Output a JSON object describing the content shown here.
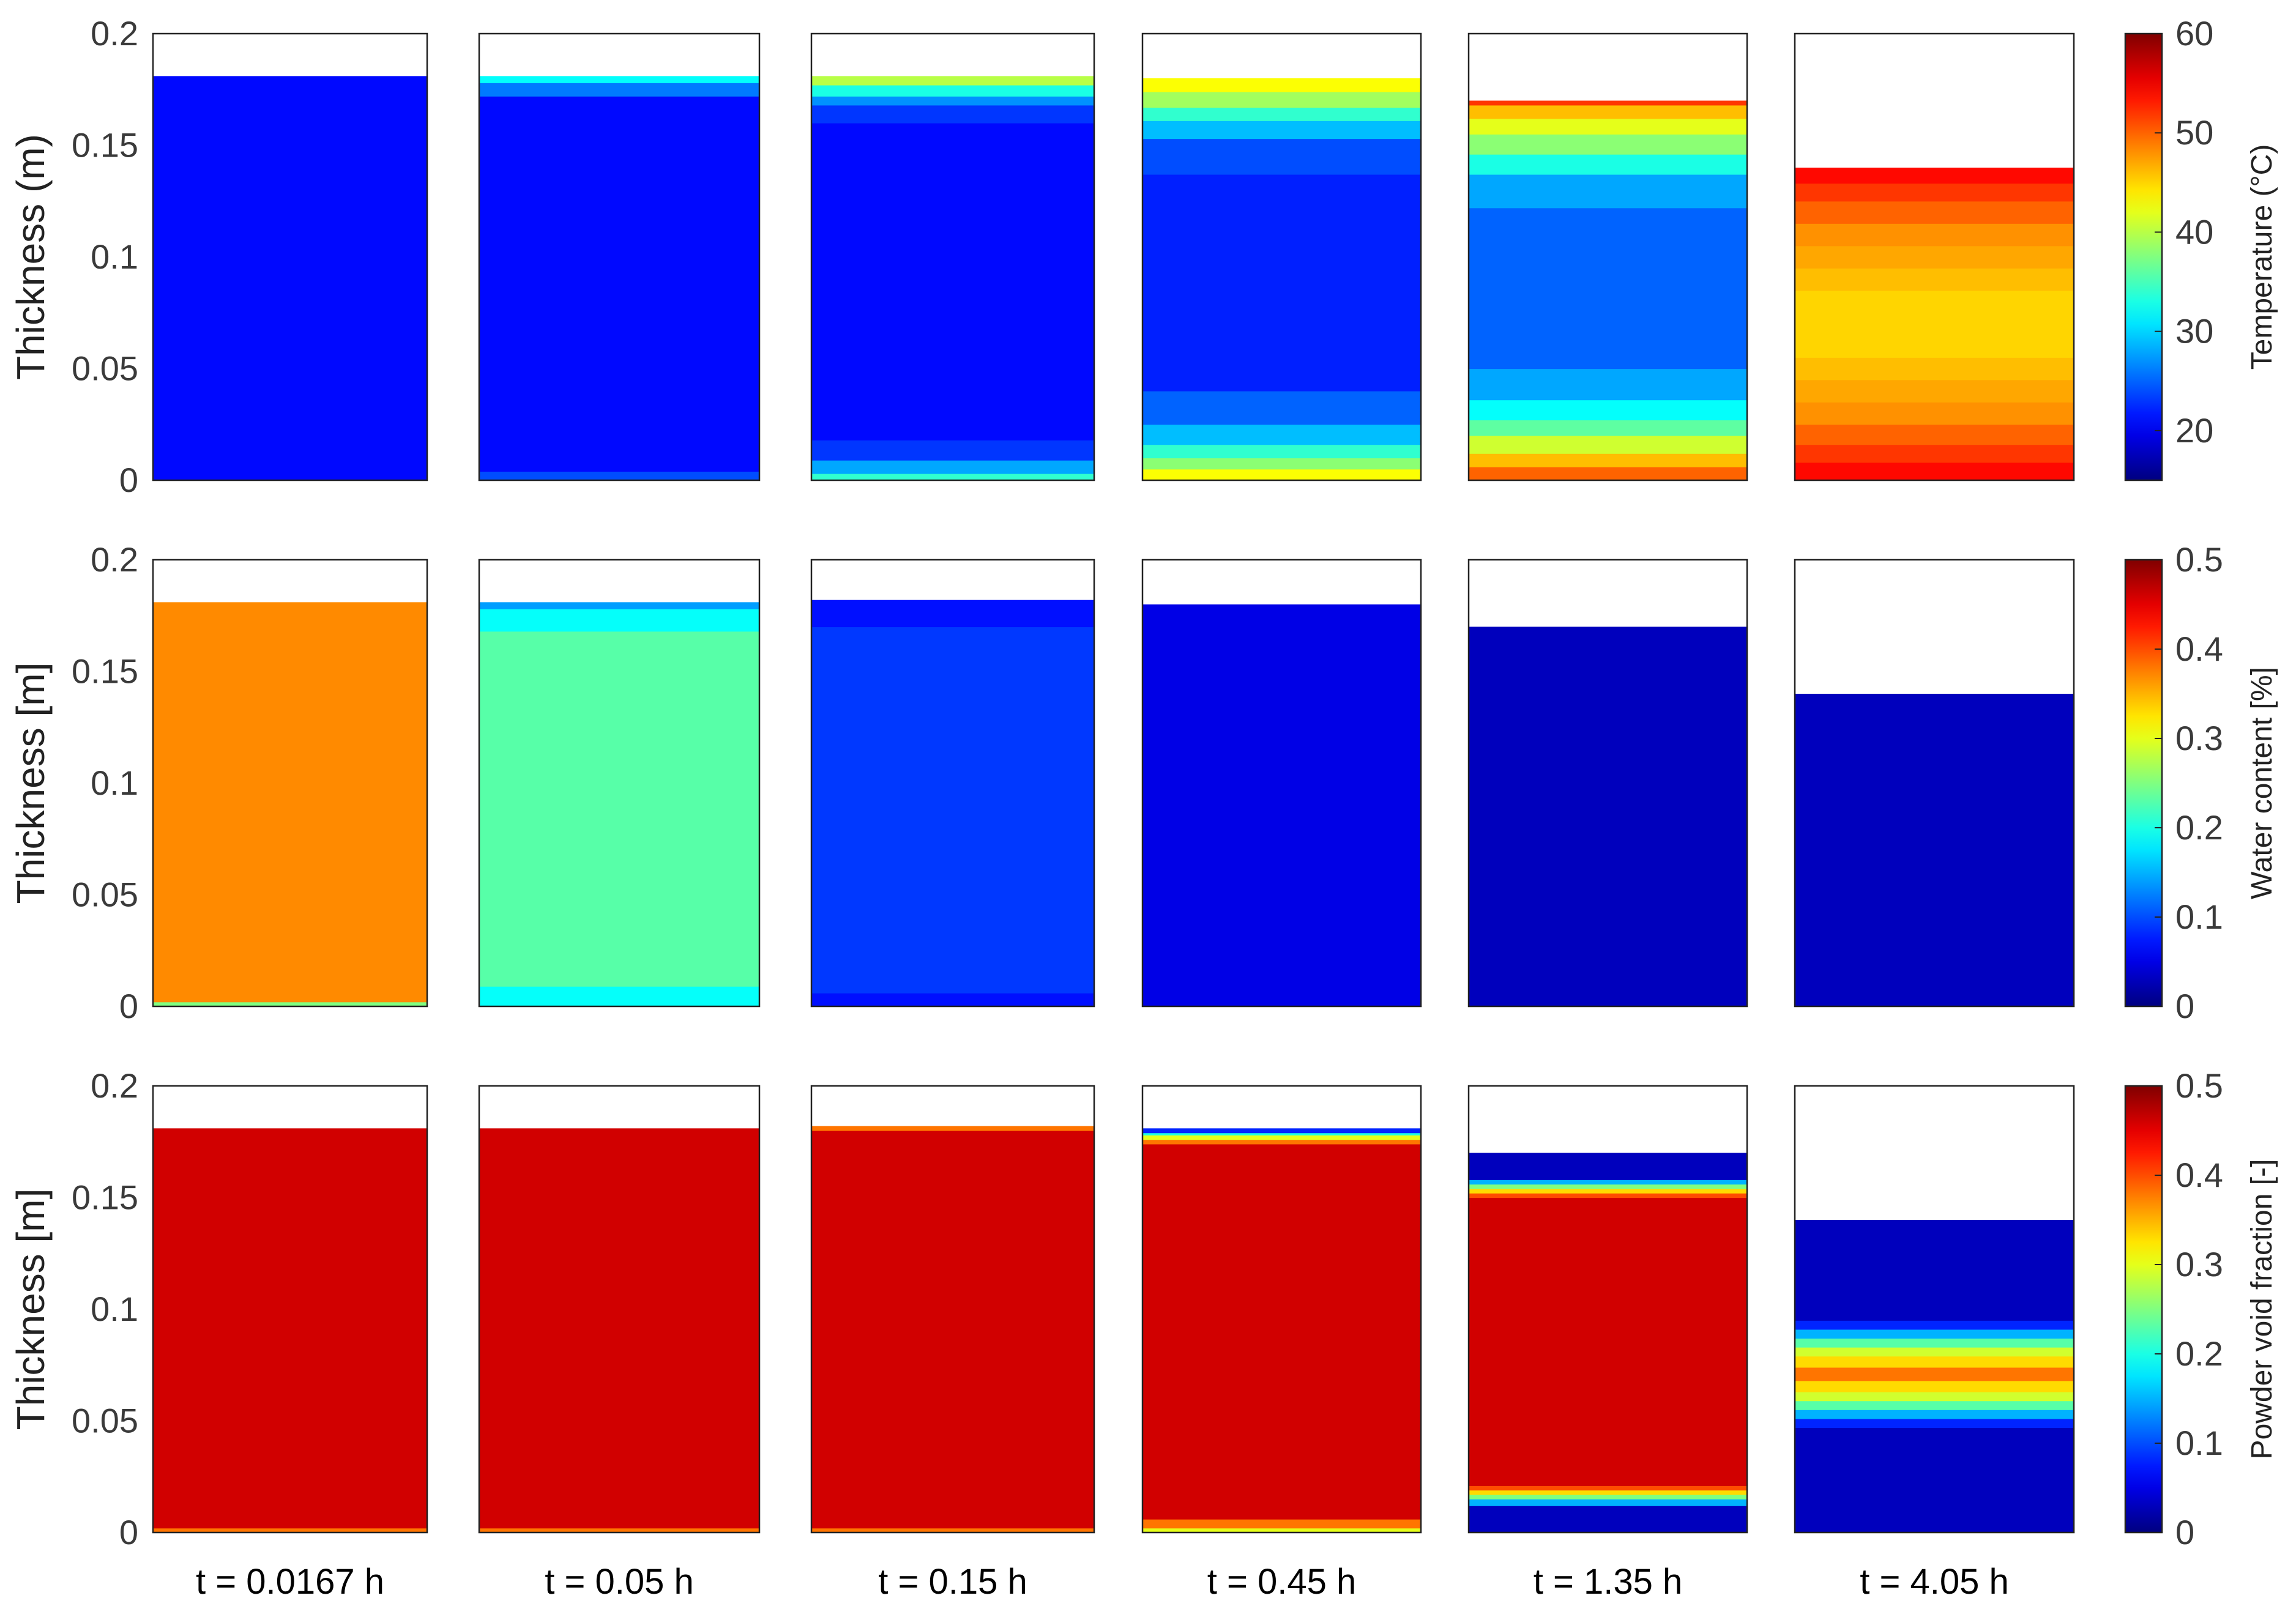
{
  "chart_data": {
    "type": "heatmap",
    "layout": "3x6 grid",
    "time_labels": [
      "t = 0.0167 h",
      "t = 0.05 h",
      "t = 0.15 h",
      "t = 0.45 h",
      "t = 1.35 h",
      "t = 4.05 h"
    ],
    "y_ticks": [
      "0",
      "0.05",
      "0.1",
      "0.15",
      "0.2"
    ],
    "ylim": [
      0,
      0.2
    ],
    "rows": [
      {
        "ylabel": "Thickness (m)",
        "colorbar_label": "Temperature (°C)",
        "colorbar_ticks": [
          "20",
          "30",
          "40",
          "50",
          "60"
        ],
        "clim": [
          15,
          60
        ],
        "colorscale": "jet",
        "panels": [
          {
            "top": 0.181,
            "bands": [
              [
                0,
                0.181,
                21
              ]
            ]
          },
          {
            "top": 0.181,
            "bands": [
              [
                0,
                0.004,
                24
              ],
              [
                0.004,
                0.172,
                21
              ],
              [
                0.172,
                0.178,
                26
              ],
              [
                0.178,
                0.181,
                32
              ]
            ]
          },
          {
            "top": 0.181,
            "bands": [
              [
                0,
                0.003,
                34
              ],
              [
                0.003,
                0.009,
                28
              ],
              [
                0.009,
                0.018,
                23
              ],
              [
                0.018,
                0.16,
                21
              ],
              [
                0.16,
                0.168,
                23
              ],
              [
                0.168,
                0.172,
                27
              ],
              [
                0.172,
                0.177,
                33
              ],
              [
                0.177,
                0.181,
                40
              ]
            ]
          },
          {
            "top": 0.18,
            "bands": [
              [
                0,
                0.005,
                43
              ],
              [
                0.005,
                0.01,
                38
              ],
              [
                0.01,
                0.016,
                34
              ],
              [
                0.016,
                0.025,
                29
              ],
              [
                0.025,
                0.04,
                25
              ],
              [
                0.04,
                0.137,
                22
              ],
              [
                0.137,
                0.153,
                24
              ],
              [
                0.153,
                0.161,
                29
              ],
              [
                0.161,
                0.167,
                34
              ],
              [
                0.167,
                0.174,
                39
              ],
              [
                0.174,
                0.18,
                43
              ]
            ]
          },
          {
            "top": 0.17,
            "bands": [
              [
                0,
                0.006,
                50
              ],
              [
                0.006,
                0.012,
                46
              ],
              [
                0.012,
                0.02,
                41
              ],
              [
                0.02,
                0.027,
                36
              ],
              [
                0.027,
                0.036,
                32
              ],
              [
                0.036,
                0.05,
                28
              ],
              [
                0.05,
                0.122,
                25
              ],
              [
                0.122,
                0.137,
                28
              ],
              [
                0.137,
                0.146,
                33
              ],
              [
                0.146,
                0.155,
                38
              ],
              [
                0.155,
                0.162,
                42
              ],
              [
                0.162,
                0.168,
                46
              ],
              [
                0.168,
                0.17,
                52
              ]
            ]
          },
          {
            "top": 0.14,
            "bands": [
              [
                0,
                0.008,
                54
              ],
              [
                0.008,
                0.016,
                52
              ],
              [
                0.016,
                0.025,
                50
              ],
              [
                0.025,
                0.035,
                48
              ],
              [
                0.035,
                0.045,
                47
              ],
              [
                0.045,
                0.055,
                46
              ],
              [
                0.055,
                0.085,
                45
              ],
              [
                0.085,
                0.095,
                46
              ],
              [
                0.095,
                0.105,
                47
              ],
              [
                0.105,
                0.115,
                48
              ],
              [
                0.115,
                0.125,
                50
              ],
              [
                0.125,
                0.133,
                52
              ],
              [
                0.133,
                0.14,
                54
              ]
            ]
          }
        ]
      },
      {
        "ylabel": "Thickness [m]",
        "colorbar_label": "Water content [%]",
        "colorbar_ticks": [
          "0",
          "0.1",
          "0.2",
          "0.3",
          "0.4",
          "0.5"
        ],
        "clim": [
          0,
          0.5
        ],
        "colorscale": "jet",
        "panels": [
          {
            "top": 0.181,
            "bands": [
              [
                0,
                0.002,
                0.25
              ],
              [
                0.002,
                0.181,
                0.37
              ]
            ]
          },
          {
            "top": 0.181,
            "bands": [
              [
                0,
                0.009,
                0.19
              ],
              [
                0.009,
                0.168,
                0.23
              ],
              [
                0.168,
                0.178,
                0.19
              ],
              [
                0.178,
                0.181,
                0.14
              ]
            ]
          },
          {
            "top": 0.182,
            "bands": [
              [
                0,
                0.006,
                0.07
              ],
              [
                0.006,
                0.17,
                0.09
              ],
              [
                0.17,
                0.182,
                0.07
              ]
            ]
          },
          {
            "top": 0.18,
            "bands": [
              [
                0,
                0.18,
                0.05
              ]
            ]
          },
          {
            "top": 0.17,
            "bands": [
              [
                0,
                0.17,
                0.03
              ]
            ]
          },
          {
            "top": 0.14,
            "bands": [
              [
                0,
                0.14,
                0.03
              ]
            ]
          }
        ]
      },
      {
        "ylabel": "Thickness [m]",
        "colorbar_label": "Powder void fraction [-]",
        "colorbar_ticks": [
          "0",
          "0.1",
          "0.2",
          "0.3",
          "0.4",
          "0.5"
        ],
        "clim": [
          0,
          0.5
        ],
        "colorscale": "jet",
        "panels": [
          {
            "top": 0.181,
            "bands": [
              [
                0,
                0.002,
                0.38
              ],
              [
                0.002,
                0.181,
                0.46
              ]
            ]
          },
          {
            "top": 0.181,
            "bands": [
              [
                0,
                0.002,
                0.38
              ],
              [
                0.002,
                0.181,
                0.46
              ]
            ]
          },
          {
            "top": 0.182,
            "bands": [
              [
                0,
                0.002,
                0.38
              ],
              [
                0.002,
                0.18,
                0.46
              ],
              [
                0.18,
                0.182,
                0.38
              ]
            ]
          },
          {
            "top": 0.181,
            "bands": [
              [
                0,
                0.002,
                0.3
              ],
              [
                0.002,
                0.006,
                0.38
              ],
              [
                0.006,
                0.174,
                0.46
              ],
              [
                0.174,
                0.176,
                0.38
              ],
              [
                0.176,
                0.178,
                0.3
              ],
              [
                0.178,
                0.179,
                0.2
              ],
              [
                0.179,
                0.181,
                0.08
              ]
            ]
          },
          {
            "top": 0.17,
            "bands": [
              [
                0,
                0.012,
                0.03
              ],
              [
                0.012,
                0.015,
                0.15
              ],
              [
                0.015,
                0.017,
                0.25
              ],
              [
                0.017,
                0.019,
                0.33
              ],
              [
                0.019,
                0.021,
                0.4
              ],
              [
                0.021,
                0.15,
                0.46
              ],
              [
                0.15,
                0.152,
                0.4
              ],
              [
                0.152,
                0.154,
                0.33
              ],
              [
                0.154,
                0.156,
                0.25
              ],
              [
                0.156,
                0.158,
                0.15
              ],
              [
                0.158,
                0.17,
                0.03
              ]
            ]
          },
          {
            "top": 0.14,
            "bands": [
              [
                0,
                0.047,
                0.03
              ],
              [
                0.047,
                0.051,
                0.08
              ],
              [
                0.051,
                0.055,
                0.15
              ],
              [
                0.055,
                0.059,
                0.23
              ],
              [
                0.059,
                0.063,
                0.29
              ],
              [
                0.063,
                0.068,
                0.33
              ],
              [
                0.068,
                0.074,
                0.38
              ],
              [
                0.074,
                0.079,
                0.33
              ],
              [
                0.079,
                0.083,
                0.29
              ],
              [
                0.083,
                0.087,
                0.23
              ],
              [
                0.087,
                0.091,
                0.15
              ],
              [
                0.091,
                0.095,
                0.08
              ],
              [
                0.095,
                0.14,
                0.03
              ]
            ]
          }
        ]
      }
    ]
  }
}
